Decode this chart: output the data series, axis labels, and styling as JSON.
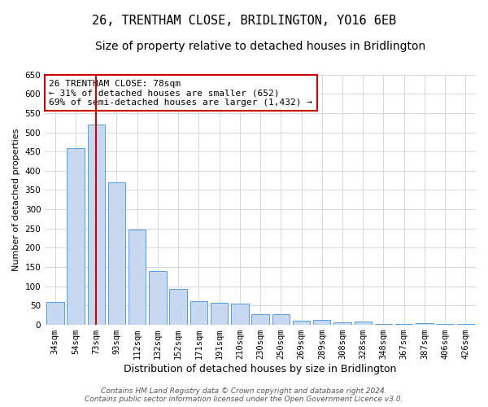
{
  "title1": "26, TRENTHAM CLOSE, BRIDLINGTON, YO16 6EB",
  "title2": "Size of property relative to detached houses in Bridlington",
  "xlabel": "Distribution of detached houses by size in Bridlington",
  "ylabel": "Number of detached properties",
  "categories": [
    "34sqm",
    "54sqm",
    "73sqm",
    "93sqm",
    "112sqm",
    "132sqm",
    "152sqm",
    "171sqm",
    "191sqm",
    "210sqm",
    "230sqm",
    "250sqm",
    "269sqm",
    "289sqm",
    "308sqm",
    "328sqm",
    "348sqm",
    "367sqm",
    "387sqm",
    "406sqm",
    "426sqm"
  ],
  "values": [
    60,
    458,
    520,
    370,
    248,
    140,
    93,
    62,
    58,
    55,
    27,
    27,
    10,
    12,
    6,
    8,
    3,
    2,
    5,
    3,
    2
  ],
  "bar_color": "#c6d9f0",
  "bar_edge_color": "#5b9bd5",
  "highlight_bar_index": 2,
  "highlight_line_color": "#cc0000",
  "annotation_line1": "26 TRENTHAM CLOSE: 78sqm",
  "annotation_line2": "← 31% of detached houses are smaller (652)",
  "annotation_line3": "69% of semi-detached houses are larger (1,432) →",
  "annotation_box_color": "#ffffff",
  "annotation_box_edge_color": "#cc0000",
  "ylim": [
    0,
    650
  ],
  "yticks": [
    0,
    50,
    100,
    150,
    200,
    250,
    300,
    350,
    400,
    450,
    500,
    550,
    600,
    650
  ],
  "background_color": "#ffffff",
  "grid_color": "#d0d8e8",
  "footer_line1": "Contains HM Land Registry data © Crown copyright and database right 2024.",
  "footer_line2": "Contains public sector information licensed under the Open Government Licence v3.0.",
  "title1_fontsize": 11,
  "title2_fontsize": 10,
  "xlabel_fontsize": 9,
  "ylabel_fontsize": 8,
  "tick_fontsize": 7.5,
  "annotation_fontsize": 8,
  "footer_fontsize": 6.5
}
